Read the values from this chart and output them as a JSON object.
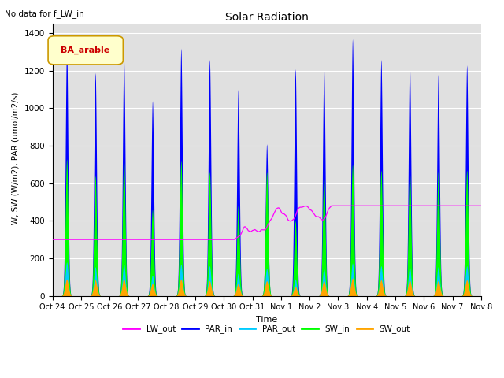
{
  "title": "Solar Radiation",
  "subtitle": "No data for f_LW_in",
  "ylabel": "LW, SW (W/m2), PAR (umol/m2/s)",
  "xlabel": "Time",
  "legend_label": "BA_arable",
  "ylim": [
    0,
    1450
  ],
  "yticks": [
    0,
    200,
    400,
    600,
    800,
    1000,
    1200,
    1400
  ],
  "series_colors": {
    "LW_out": "#ff00ff",
    "PAR_in": "#0000ff",
    "PAR_out": "#00ccff",
    "SW_in": "#00ff00",
    "SW_out": "#ffa500"
  },
  "xtick_labels": [
    "Oct 24",
    "Oct 25",
    "Oct 26",
    "Oct 27",
    "Oct 28",
    "Oct 29",
    "Oct 30",
    "Oct 31",
    "Nov 1",
    "Nov 2",
    "Nov 3",
    "Nov 4",
    "Nov 5",
    "Nov 6",
    "Nov 7",
    "Nov 8"
  ],
  "par_in_peaks": [
    1330,
    1190,
    1260,
    1040,
    1320,
    1260,
    1100,
    810,
    1210,
    1210,
    1370,
    1260,
    1230,
    1180,
    1230
  ],
  "sw_in_peaks": [
    730,
    640,
    720,
    460,
    720,
    660,
    480,
    660,
    400,
    630,
    700,
    670,
    660,
    660,
    670
  ],
  "par_out_peaks": [
    180,
    155,
    170,
    110,
    170,
    160,
    120,
    145,
    90,
    145,
    175,
    160,
    155,
    155,
    160
  ],
  "sw_out_peaks": [
    90,
    85,
    90,
    65,
    90,
    80,
    65,
    80,
    50,
    80,
    95,
    85,
    85,
    80,
    85
  ],
  "background_color": "#e0e0e0",
  "grid_color": "#ffffff",
  "num_days": 15,
  "lw_base": 370,
  "lw_amp": 50
}
